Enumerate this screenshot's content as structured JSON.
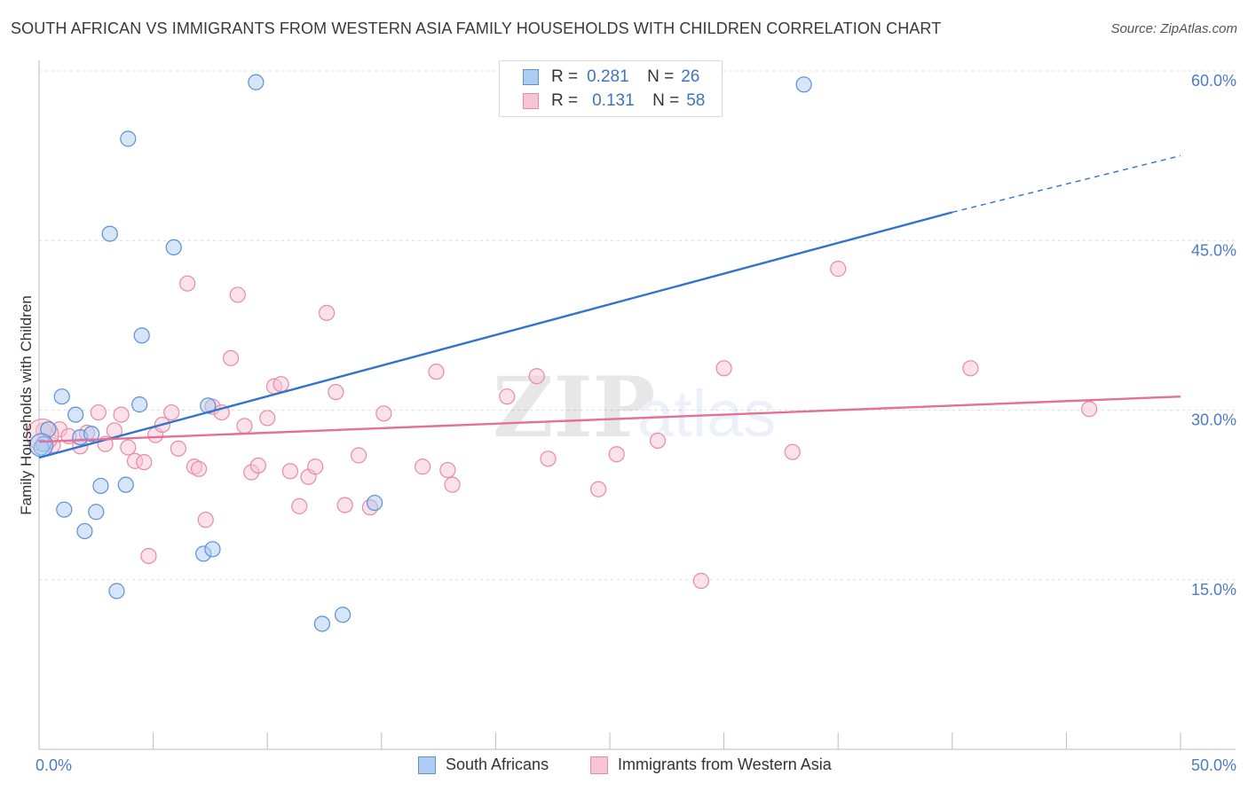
{
  "title": "SOUTH AFRICAN VS IMMIGRANTS FROM WESTERN ASIA FAMILY HOUSEHOLDS WITH CHILDREN CORRELATION CHART",
  "source": "Source: ZipAtlas.com",
  "watermark": {
    "zip": "ZIP",
    "atlas": "atlas"
  },
  "legend": {
    "rows": [
      {
        "r_label": "R =",
        "r_value": "0.281",
        "n_label": "N =",
        "n_value": "26"
      },
      {
        "r_label": "R =",
        "r_value": "0.131",
        "n_label": "N =",
        "n_value": "58"
      }
    ]
  },
  "colors": {
    "blue_fill": "#aecbf2",
    "blue_stroke": "#5b8fd6",
    "blue_line": "#2f74cc",
    "pink_fill": "#f8c3d3",
    "pink_stroke": "#e68aa7",
    "pink_line": "#e46f98",
    "tick_text": "#4a7cc9",
    "grid": "#dcdcdc"
  },
  "chart_data": {
    "type": "scatter",
    "title": "SOUTH AFRICAN VS IMMIGRANTS FROM WESTERN ASIA FAMILY HOUSEHOLDS WITH CHILDREN CORRELATION CHART",
    "xlabel": "",
    "ylabel": "Family Households with Children",
    "xlim": [
      0,
      50
    ],
    "ylim": [
      0,
      60
    ],
    "x_tick_labels": [
      "0.0%",
      "50.0%"
    ],
    "y_ticks": [
      15,
      30,
      45,
      60
    ],
    "y_tick_labels": [
      "15.0%",
      "30.0%",
      "45.0%",
      "60.0%"
    ],
    "legend_position": "bottom",
    "series": [
      {
        "name": "South Africans",
        "color": "blue",
        "R": 0.281,
        "N": 26,
        "points": [
          [
            0.2,
            27.0
          ],
          [
            0.4,
            28.3
          ],
          [
            1.0,
            31.2
          ],
          [
            1.1,
            21.2
          ],
          [
            1.6,
            29.6
          ],
          [
            1.8,
            27.6
          ],
          [
            2.0,
            19.3
          ],
          [
            2.5,
            21.0
          ],
          [
            2.7,
            23.3
          ],
          [
            3.1,
            45.6
          ],
          [
            3.4,
            14.0
          ],
          [
            3.8,
            23.4
          ],
          [
            3.9,
            54.0
          ],
          [
            4.4,
            30.5
          ],
          [
            4.5,
            36.6
          ],
          [
            5.9,
            44.4
          ],
          [
            7.2,
            17.3
          ],
          [
            7.4,
            30.4
          ],
          [
            7.6,
            17.7
          ],
          [
            9.5,
            59.0
          ],
          [
            12.4,
            11.1
          ],
          [
            13.3,
            11.9
          ],
          [
            14.7,
            21.8
          ],
          [
            33.5,
            58.8
          ],
          [
            0.1,
            26.7
          ],
          [
            2.3,
            27.9
          ]
        ],
        "trendline": {
          "x": [
            0,
            40
          ],
          "y": [
            25.8,
            47.5
          ],
          "dashed_extension": {
            "x": [
              40,
              50
            ],
            "y": [
              47.5,
              52.5
            ]
          }
        }
      },
      {
        "name": "Immigrants from Western Asia",
        "color": "pink",
        "R": 0.131,
        "N": 58,
        "points": [
          [
            0.2,
            28.2
          ],
          [
            0.6,
            26.9
          ],
          [
            0.9,
            28.3
          ],
          [
            1.3,
            27.7
          ],
          [
            1.8,
            26.8
          ],
          [
            2.1,
            28.0
          ],
          [
            2.6,
            29.8
          ],
          [
            2.9,
            27.0
          ],
          [
            3.3,
            28.2
          ],
          [
            3.6,
            29.6
          ],
          [
            3.9,
            26.7
          ],
          [
            4.2,
            25.5
          ],
          [
            4.6,
            25.4
          ],
          [
            4.8,
            17.1
          ],
          [
            5.1,
            27.8
          ],
          [
            5.4,
            28.7
          ],
          [
            5.8,
            29.8
          ],
          [
            6.1,
            26.6
          ],
          [
            6.5,
            41.2
          ],
          [
            6.8,
            25.0
          ],
          [
            7.0,
            24.8
          ],
          [
            7.3,
            20.3
          ],
          [
            7.6,
            30.3
          ],
          [
            8.0,
            29.8
          ],
          [
            8.4,
            34.6
          ],
          [
            8.7,
            40.2
          ],
          [
            9.0,
            28.6
          ],
          [
            9.3,
            24.5
          ],
          [
            9.6,
            25.1
          ],
          [
            10.0,
            29.3
          ],
          [
            10.3,
            32.1
          ],
          [
            10.6,
            32.3
          ],
          [
            11.0,
            24.6
          ],
          [
            11.4,
            21.5
          ],
          [
            11.8,
            24.1
          ],
          [
            12.1,
            25.0
          ],
          [
            12.6,
            38.6
          ],
          [
            13.0,
            31.6
          ],
          [
            13.4,
            21.6
          ],
          [
            14.0,
            26.0
          ],
          [
            14.5,
            21.4
          ],
          [
            15.1,
            29.7
          ],
          [
            16.8,
            25.0
          ],
          [
            17.4,
            33.4
          ],
          [
            17.9,
            24.7
          ],
          [
            18.1,
            23.4
          ],
          [
            20.5,
            31.2
          ],
          [
            21.8,
            33.0
          ],
          [
            22.3,
            25.7
          ],
          [
            24.5,
            23.0
          ],
          [
            25.3,
            26.1
          ],
          [
            27.1,
            27.3
          ],
          [
            29.0,
            14.9
          ],
          [
            30.0,
            33.7
          ],
          [
            33.0,
            26.3
          ],
          [
            35.0,
            42.5
          ],
          [
            40.8,
            33.7
          ],
          [
            46.0,
            30.1
          ]
        ],
        "trendline": {
          "x": [
            0,
            50
          ],
          "y": [
            27.2,
            31.2
          ]
        }
      }
    ]
  }
}
